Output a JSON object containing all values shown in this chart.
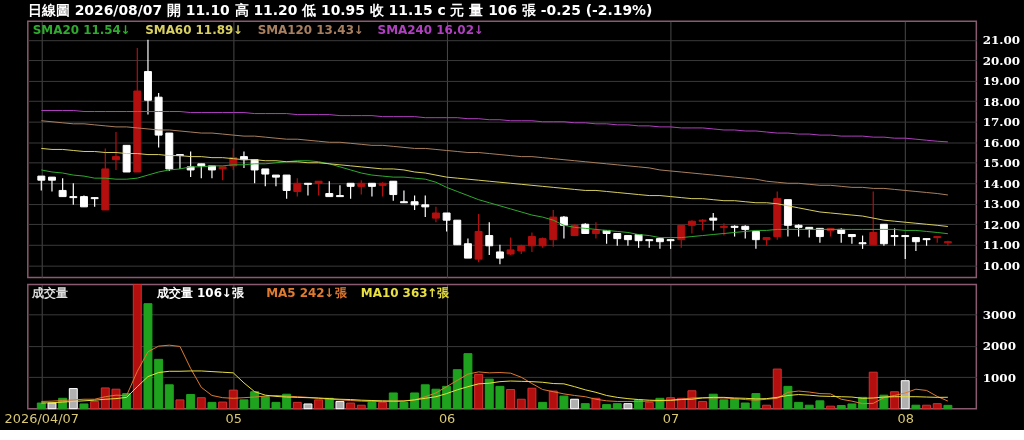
{
  "chart_data": [
    {
      "type": "candlestick",
      "title": "日線圖 2026/08/07 開 11.10 高 11.20 低 10.95 收 11.15 c 元 量 106 張 -0.25 (-2.19%)",
      "categories": [
        "2026/04/07",
        null,
        null,
        null,
        null,
        null,
        null,
        null,
        null,
        null,
        null,
        null,
        null,
        null,
        null,
        null,
        null,
        null,
        "05",
        null,
        null,
        null,
        null,
        null,
        null,
        null,
        null,
        null,
        null,
        null,
        null,
        null,
        null,
        null,
        null,
        null,
        null,
        null,
        "06",
        null,
        null,
        null,
        null,
        null,
        null,
        null,
        null,
        null,
        null,
        null,
        null,
        null,
        null,
        null,
        null,
        null,
        null,
        null,
        null,
        "07",
        null,
        null,
        null,
        null,
        null,
        null,
        null,
        null,
        null,
        null,
        null,
        null,
        null,
        null,
        null,
        null,
        null,
        null,
        null,
        null,
        null,
        "08",
        null,
        null,
        null,
        null
      ],
      "ohlc": [
        [
          14.35,
          14.35,
          13.65,
          14.15
        ],
        [
          14.3,
          14.3,
          13.6,
          14.15
        ],
        [
          13.65,
          14.25,
          13.35,
          13.35
        ],
        [
          13.35,
          14.0,
          12.95,
          13.3
        ],
        [
          13.35,
          13.4,
          12.85,
          12.85
        ],
        [
          13.3,
          13.3,
          12.85,
          13.25
        ],
        [
          12.7,
          15.7,
          12.7,
          14.7
        ],
        [
          15.15,
          16.5,
          14.65,
          15.3
        ],
        [
          15.85,
          15.85,
          14.55,
          14.55
        ],
        [
          14.55,
          20.6,
          14.55,
          18.5
        ],
        [
          19.45,
          21.0,
          17.35,
          18.05
        ],
        [
          18.2,
          18.4,
          15.75,
          16.35
        ],
        [
          16.45,
          16.45,
          14.6,
          14.7
        ],
        [
          15.4,
          15.4,
          14.7,
          15.35
        ],
        [
          14.8,
          15.55,
          14.3,
          14.65
        ],
        [
          14.95,
          14.95,
          14.25,
          14.85
        ],
        [
          14.85,
          14.85,
          14.25,
          14.65
        ],
        [
          14.7,
          14.8,
          14.15,
          14.8
        ],
        [
          14.85,
          15.7,
          14.65,
          15.25
        ],
        [
          15.3,
          15.55,
          14.75,
          15.15
        ],
        [
          15.15,
          15.15,
          14.0,
          14.65
        ],
        [
          14.7,
          14.7,
          13.85,
          14.45
        ],
        [
          14.4,
          14.4,
          13.85,
          14.3
        ],
        [
          14.4,
          14.4,
          13.25,
          13.65
        ],
        [
          13.6,
          14.25,
          13.35,
          14.0
        ],
        [
          14.0,
          14.0,
          13.4,
          13.95
        ],
        [
          14.0,
          14.1,
          13.4,
          14.1
        ],
        [
          13.5,
          14.1,
          13.35,
          13.35
        ],
        [
          13.4,
          13.9,
          13.35,
          13.35
        ],
        [
          14.0,
          14.0,
          13.25,
          13.85
        ],
        [
          13.85,
          14.15,
          13.45,
          14.0
        ],
        [
          14.0,
          14.0,
          13.35,
          13.85
        ],
        [
          13.9,
          14.05,
          13.35,
          14.0
        ],
        [
          14.1,
          14.1,
          13.15,
          13.45
        ],
        [
          13.1,
          13.65,
          13.05,
          13.05
        ],
        [
          13.1,
          13.4,
          12.7,
          12.95
        ],
        [
          12.95,
          13.4,
          12.35,
          12.85
        ],
        [
          12.3,
          12.85,
          12.1,
          12.55
        ],
        [
          12.55,
          12.55,
          11.65,
          12.2
        ],
        [
          12.2,
          12.2,
          11.0,
          11.0
        ],
        [
          11.05,
          11.3,
          10.35,
          10.35
        ],
        [
          10.3,
          12.5,
          10.15,
          11.65
        ],
        [
          11.45,
          12.1,
          10.5,
          10.95
        ],
        [
          10.65,
          11.0,
          10.05,
          10.35
        ],
        [
          10.55,
          11.35,
          10.5,
          10.75
        ],
        [
          10.7,
          11.0,
          10.55,
          10.95
        ],
        [
          10.95,
          11.6,
          10.65,
          11.4
        ],
        [
          10.95,
          11.35,
          10.85,
          11.3
        ],
        [
          11.25,
          12.7,
          10.9,
          12.35
        ],
        [
          12.35,
          12.4,
          11.3,
          11.95
        ],
        [
          11.45,
          12.0,
          11.45,
          11.95
        ],
        [
          12.0,
          12.05,
          11.55,
          11.55
        ],
        [
          11.55,
          12.1,
          11.3,
          11.7
        ],
        [
          11.7,
          11.7,
          11.05,
          11.55
        ],
        [
          11.55,
          11.55,
          10.95,
          11.3
        ],
        [
          11.45,
          11.45,
          10.95,
          11.25
        ],
        [
          11.5,
          11.5,
          10.85,
          11.2
        ],
        [
          11.25,
          11.25,
          10.85,
          11.2
        ],
        [
          11.3,
          11.35,
          10.8,
          11.15
        ],
        [
          11.25,
          11.25,
          10.8,
          11.2
        ],
        [
          11.25,
          11.95,
          10.85,
          11.95
        ],
        [
          11.95,
          12.2,
          11.55,
          12.15
        ],
        [
          12.15,
          12.25,
          11.7,
          12.2
        ],
        [
          12.3,
          12.55,
          11.7,
          12.2
        ],
        [
          11.85,
          12.05,
          11.45,
          11.9
        ],
        [
          11.9,
          11.95,
          11.4,
          11.85
        ],
        [
          11.9,
          11.95,
          11.3,
          11.75
        ],
        [
          11.65,
          11.65,
          10.8,
          11.25
        ],
        [
          11.25,
          11.35,
          10.95,
          11.35
        ],
        [
          11.4,
          13.6,
          11.25,
          13.25
        ],
        [
          13.2,
          13.2,
          11.4,
          11.95
        ],
        [
          11.95,
          12.0,
          11.4,
          11.85
        ],
        [
          11.85,
          11.85,
          11.35,
          11.75
        ],
        [
          11.8,
          11.8,
          11.1,
          11.4
        ],
        [
          11.7,
          11.8,
          11.4,
          11.8
        ],
        [
          11.75,
          11.8,
          11.1,
          11.55
        ],
        [
          11.5,
          11.5,
          11.05,
          11.4
        ],
        [
          11.1,
          11.45,
          10.8,
          11.05
        ],
        [
          11.0,
          13.6,
          11.0,
          11.6
        ],
        [
          12.0,
          12.0,
          10.95,
          11.05
        ],
        [
          11.45,
          11.8,
          10.95,
          11.4
        ],
        [
          11.45,
          11.45,
          10.3,
          11.4
        ],
        [
          11.35,
          11.35,
          10.7,
          11.15
        ],
        [
          11.3,
          11.3,
          10.95,
          11.25
        ],
        [
          11.35,
          11.4,
          11.1,
          11.4
        ],
        [
          11.1,
          11.2,
          10.95,
          11.15
        ]
      ],
      "colors": [
        "#ffffff",
        "#ffffff",
        "#ffffff",
        "#ffffff",
        "#ffffff",
        "#ffffff",
        "#b40f0f",
        "#b40f0f",
        "#ffffff",
        "#b40f0f",
        "#ffffff",
        "#ffffff",
        "#ffffff",
        "#ffffff",
        "#ffffff",
        "#ffffff",
        "#ffffff",
        "#b40f0f",
        "#b40f0f",
        "#ffffff",
        "#ffffff",
        "#ffffff",
        "#ffffff",
        "#ffffff",
        "#b40f0f",
        "#ffffff",
        "#b40f0f",
        "#ffffff",
        "#ffffff",
        "#ffffff",
        "#b40f0f",
        "#ffffff",
        "#b40f0f",
        "#ffffff",
        "#ffffff",
        "#ffffff",
        "#ffffff",
        "#b40f0f",
        "#ffffff",
        "#ffffff",
        "#ffffff",
        "#b40f0f",
        "#ffffff",
        "#ffffff",
        "#b40f0f",
        "#b40f0f",
        "#b40f0f",
        "#b40f0f",
        "#b40f0f",
        "#ffffff",
        "#b40f0f",
        "#ffffff",
        "#b40f0f",
        "#ffffff",
        "#ffffff",
        "#ffffff",
        "#ffffff",
        "#ffffff",
        "#ffffff",
        "#ffffff",
        "#b40f0f",
        "#b40f0f",
        "#b40f0f",
        "#ffffff",
        "#b40f0f",
        "#ffffff",
        "#ffffff",
        "#ffffff",
        "#b40f0f",
        "#b40f0f",
        "#ffffff",
        "#ffffff",
        "#ffffff",
        "#ffffff",
        "#b40f0f",
        "#ffffff",
        "#ffffff",
        "#ffffff",
        "#b40f0f",
        "#ffffff",
        "#ffffff",
        "#ffffff",
        "#ffffff",
        "#ffffff",
        "#b40f0f",
        "#b40f0f"
      ],
      "series": [
        {
          "name": "SMA20 11.54↓",
          "type": "line",
          "color": "#2faa2f",
          "values": [
            14.65,
            14.55,
            14.5,
            14.4,
            14.35,
            14.25,
            14.25,
            14.2,
            14.2,
            14.25,
            14.4,
            14.55,
            14.65,
            14.7,
            14.8,
            14.8,
            14.85,
            14.85,
            14.9,
            14.9,
            14.95,
            14.95,
            15.0,
            15.05,
            15.1,
            15.1,
            15.05,
            14.95,
            14.8,
            14.65,
            14.5,
            14.4,
            14.35,
            14.3,
            14.3,
            14.25,
            14.2,
            14.05,
            13.8,
            13.6,
            13.4,
            13.2,
            13.05,
            12.9,
            12.75,
            12.6,
            12.45,
            12.35,
            12.2,
            11.95,
            11.85,
            11.8,
            11.75,
            11.7,
            11.65,
            11.6,
            11.5,
            11.45,
            11.35,
            11.35,
            11.35,
            11.4,
            11.45,
            11.5,
            11.55,
            11.6,
            11.65,
            11.7,
            11.7,
            11.75,
            11.75,
            11.75,
            11.75,
            11.75,
            11.75,
            11.75,
            11.75,
            11.75,
            11.75,
            11.75,
            11.75,
            11.7,
            11.7,
            11.65,
            11.6,
            11.54
          ]
        },
        {
          "name": "SMA60 11.89↓",
          "type": "line",
          "color": "#d8d060",
          "values": [
            15.7,
            15.65,
            15.65,
            15.6,
            15.55,
            15.55,
            15.5,
            15.5,
            15.45,
            15.45,
            15.4,
            15.4,
            15.35,
            15.35,
            15.3,
            15.3,
            15.25,
            15.25,
            15.2,
            15.15,
            15.15,
            15.1,
            15.1,
            15.05,
            15.05,
            15.0,
            15.0,
            14.95,
            14.9,
            14.85,
            14.8,
            14.75,
            14.7,
            14.7,
            14.65,
            14.55,
            14.5,
            14.4,
            14.3,
            14.25,
            14.2,
            14.15,
            14.1,
            14.05,
            14.0,
            13.95,
            13.9,
            13.85,
            13.8,
            13.75,
            13.7,
            13.65,
            13.65,
            13.6,
            13.55,
            13.5,
            13.45,
            13.4,
            13.4,
            13.35,
            13.3,
            13.25,
            13.25,
            13.2,
            13.15,
            13.15,
            13.1,
            13.05,
            13.05,
            13.0,
            12.9,
            12.8,
            12.7,
            12.6,
            12.55,
            12.5,
            12.45,
            12.4,
            12.3,
            12.2,
            12.15,
            12.1,
            12.05,
            12.0,
            11.95,
            11.89
          ]
        },
        {
          "name": "SMA120 13.43↓",
          "type": "line",
          "color": "#a88060",
          "values": [
            17.05,
            17.0,
            16.95,
            16.9,
            16.9,
            16.85,
            16.8,
            16.75,
            16.75,
            16.7,
            16.65,
            16.6,
            16.6,
            16.55,
            16.5,
            16.45,
            16.45,
            16.4,
            16.35,
            16.3,
            16.3,
            16.25,
            16.2,
            16.15,
            16.15,
            16.1,
            16.05,
            16.0,
            16.0,
            15.95,
            15.9,
            15.85,
            15.85,
            15.8,
            15.75,
            15.7,
            15.7,
            15.65,
            15.6,
            15.55,
            15.5,
            15.5,
            15.45,
            15.4,
            15.35,
            15.3,
            15.3,
            15.25,
            15.2,
            15.15,
            15.1,
            15.05,
            15.0,
            14.95,
            14.9,
            14.85,
            14.8,
            14.75,
            14.65,
            14.6,
            14.55,
            14.5,
            14.45,
            14.4,
            14.35,
            14.3,
            14.25,
            14.2,
            14.1,
            14.05,
            14.0,
            14.0,
            13.95,
            13.9,
            13.9,
            13.85,
            13.8,
            13.8,
            13.75,
            13.75,
            13.7,
            13.65,
            13.6,
            13.55,
            13.5,
            13.43
          ]
        },
        {
          "name": "SMA240 16.02↓",
          "type": "line",
          "color": "#b040c0",
          "values": [
            17.55,
            17.55,
            17.55,
            17.55,
            17.5,
            17.5,
            17.5,
            17.5,
            17.5,
            17.5,
            17.5,
            17.5,
            17.5,
            17.5,
            17.45,
            17.45,
            17.45,
            17.45,
            17.45,
            17.45,
            17.4,
            17.4,
            17.4,
            17.4,
            17.35,
            17.35,
            17.35,
            17.35,
            17.3,
            17.3,
            17.3,
            17.3,
            17.25,
            17.25,
            17.25,
            17.25,
            17.2,
            17.2,
            17.2,
            17.2,
            17.15,
            17.15,
            17.1,
            17.1,
            17.05,
            17.05,
            17.05,
            17.0,
            17.0,
            17.0,
            16.95,
            16.95,
            16.9,
            16.9,
            16.85,
            16.85,
            16.8,
            16.8,
            16.75,
            16.75,
            16.7,
            16.7,
            16.7,
            16.65,
            16.6,
            16.6,
            16.55,
            16.55,
            16.5,
            16.45,
            16.45,
            16.4,
            16.4,
            16.35,
            16.35,
            16.3,
            16.3,
            16.3,
            16.25,
            16.25,
            16.2,
            16.2,
            16.15,
            16.1,
            16.05,
            16.02
          ]
        }
      ],
      "ylim": [
        9.4,
        21.9
      ],
      "yticks": [
        {
          "value": 10,
          "label": "10.00"
        },
        {
          "value": 11,
          "label": "11.00"
        },
        {
          "value": 12,
          "label": "12.00"
        },
        {
          "value": 13,
          "label": "13.00"
        },
        {
          "value": 14,
          "label": "14.00"
        },
        {
          "value": 15,
          "label": "15.00"
        },
        {
          "value": 16,
          "label": "16.00"
        },
        {
          "value": 17,
          "label": "17.00"
        },
        {
          "value": 18,
          "label": "18.00"
        },
        {
          "value": 19,
          "label": "19.00"
        },
        {
          "value": 20,
          "label": "20.00"
        },
        {
          "value": 21,
          "label": "21.00"
        }
      ],
      "grid": true,
      "legend": "top left",
      "tick_labels": "y"
    },
    {
      "type": "bar",
      "ylabel": "成交量",
      "categories": [
        "2026/04/07",
        null,
        null,
        null,
        null,
        null,
        null,
        null,
        null,
        null,
        null,
        null,
        null,
        null,
        null,
        null,
        null,
        null,
        "05",
        null,
        null,
        null,
        null,
        null,
        null,
        null,
        null,
        null,
        null,
        null,
        null,
        null,
        null,
        null,
        null,
        null,
        null,
        null,
        "06",
        null,
        null,
        null,
        null,
        null,
        null,
        null,
        null,
        null,
        null,
        null,
        null,
        null,
        null,
        null,
        null,
        null,
        null,
        null,
        null,
        "07",
        null,
        null,
        null,
        null,
        null,
        null,
        null,
        null,
        null,
        null,
        null,
        null,
        null,
        null,
        null,
        null,
        null,
        null,
        null,
        null,
        null,
        "08",
        null,
        null,
        null,
        null
      ],
      "series": [
        {
          "name": "成交量 106↓張",
          "type": "bar",
          "values": [
            180,
            180,
            330,
            640,
            150,
            230,
            660,
            620,
            480,
            3950,
            3340,
            1570,
            760,
            280,
            450,
            350,
            200,
            210,
            590,
            280,
            540,
            380,
            200,
            460,
            200,
            150,
            280,
            330,
            230,
            180,
            110,
            200,
            200,
            500,
            200,
            500,
            760,
            620,
            710,
            1240,
            1750,
            1090,
            940,
            710,
            610,
            300,
            650,
            200,
            560,
            400,
            300,
            160,
            330,
            130,
            160,
            160,
            280,
            200,
            330,
            350,
            330,
            570,
            230,
            460,
            280,
            300,
            180,
            480,
            110,
            1260,
            710,
            200,
            110,
            250,
            80,
            100,
            150,
            360,
            1160,
            430,
            540,
            890,
            110,
            110,
            160,
            106
          ],
          "colors": [
            "#1fa31f",
            "#b0b0b0",
            "#1fa31f",
            "#b0b0b0",
            "#1fa31f",
            "#b40f0f",
            "#b40f0f",
            "#b40f0f",
            "#1fa31f",
            "#b40f0f",
            "#1fa31f",
            "#1fa31f",
            "#1fa31f",
            "#b40f0f",
            "#1fa31f",
            "#b40f0f",
            "#1fa31f",
            "#b40f0f",
            "#b40f0f",
            "#1fa31f",
            "#1fa31f",
            "#1fa31f",
            "#1fa31f",
            "#1fa31f",
            "#b40f0f",
            "#b0b0b0",
            "#b40f0f",
            "#1fa31f",
            "#b0b0b0",
            "#b40f0f",
            "#b40f0f",
            "#1fa31f",
            "#b40f0f",
            "#1fa31f",
            "#1fa31f",
            "#1fa31f",
            "#1fa31f",
            "#1fa31f",
            "#1fa31f",
            "#1fa31f",
            "#1fa31f",
            "#b40f0f",
            "#1fa31f",
            "#1fa31f",
            "#b40f0f",
            "#b40f0f",
            "#b40f0f",
            "#1fa31f",
            "#b40f0f",
            "#1fa31f",
            "#b0b0b0",
            "#1fa31f",
            "#b40f0f",
            "#1fa31f",
            "#1fa31f",
            "#b0b0b0",
            "#1fa31f",
            "#b40f0f",
            "#1fa31f",
            "#b40f0f",
            "#b40f0f",
            "#b40f0f",
            "#b40f0f",
            "#1fa31f",
            "#1fa31f",
            "#1fa31f",
            "#1fa31f",
            "#1fa31f",
            "#b40f0f",
            "#b40f0f",
            "#1fa31f",
            "#1fa31f",
            "#1fa31f",
            "#1fa31f",
            "#b40f0f",
            "#1fa31f",
            "#1fa31f",
            "#1fa31f",
            "#b40f0f",
            "#1fa31f",
            "#b40f0f",
            "#b0b0b0",
            "#1fa31f",
            "#b40f0f",
            "#b40f0f",
            "#1fa31f"
          ]
        },
        {
          "name": "MA5 242↓張",
          "type": "line",
          "color": "#e07a30",
          "values": [
            230,
            240,
            260,
            280,
            300,
            300,
            380,
            430,
            420,
            1190,
            1810,
            1990,
            2020,
            1980,
            1280,
            680,
            420,
            350,
            330,
            350,
            370,
            400,
            420,
            400,
            380,
            360,
            330,
            300,
            280,
            260,
            240,
            230,
            230,
            240,
            250,
            280,
            380,
            500,
            700,
            900,
            1100,
            1170,
            1140,
            1150,
            1130,
            1000,
            800,
            610,
            540,
            470,
            420,
            380,
            300,
            250,
            230,
            230,
            230,
            240,
            250,
            260,
            300,
            340,
            350,
            340,
            340,
            320,
            290,
            270,
            300,
            330,
            520,
            560,
            530,
            480,
            470,
            300,
            240,
            160,
            170,
            350,
            420,
            500,
            620,
            580,
            390,
            242
          ]
        },
        {
          "name": "MA10 363↑張",
          "type": "line",
          "color": "#e8e040",
          "values": [
            180,
            190,
            210,
            230,
            250,
            270,
            300,
            320,
            360,
            700,
            1020,
            1150,
            1190,
            1190,
            1200,
            1200,
            1180,
            1160,
            1140,
            820,
            540,
            430,
            390,
            370,
            360,
            350,
            340,
            320,
            300,
            290,
            270,
            260,
            250,
            240,
            240,
            280,
            330,
            380,
            480,
            600,
            700,
            790,
            810,
            860,
            880,
            870,
            860,
            840,
            800,
            790,
            700,
            600,
            520,
            420,
            360,
            320,
            290,
            270,
            260,
            270,
            290,
            300,
            340,
            360,
            360,
            340,
            330,
            310,
            320,
            360,
            420,
            450,
            430,
            400,
            390,
            380,
            370,
            330,
            340,
            370,
            380,
            380,
            380,
            370,
            360,
            363
          ]
        }
      ],
      "ylim": [
        0,
        3950
      ],
      "yticks": [
        1000,
        2000,
        3000
      ],
      "grid": true,
      "legend": "top left"
    }
  ]
}
